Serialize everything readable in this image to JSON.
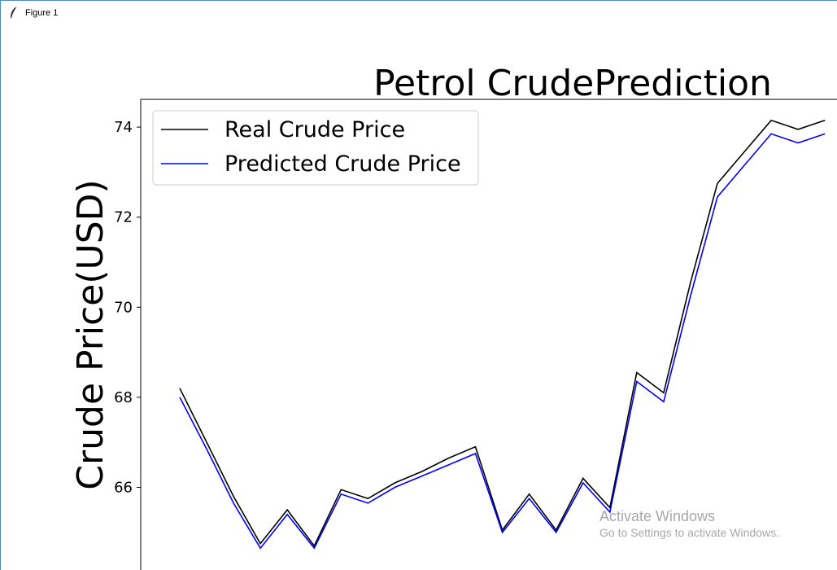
{
  "window": {
    "title": "Figure 1",
    "icon": "feather-icon"
  },
  "chart_data": {
    "type": "line",
    "title": "Petrol CrudePrediction",
    "ylabel": "Crude Price(USD)",
    "xlabel": "",
    "yticks": [
      66,
      68,
      70,
      72,
      74
    ],
    "ylim": [
      64.25,
      74.6
    ],
    "xlim": [
      -1.5,
      24
    ],
    "grid": false,
    "legend_position": "top-left",
    "x": [
      0,
      1,
      2,
      3,
      4,
      5,
      6,
      7,
      8,
      9,
      10,
      11,
      12,
      13,
      14,
      15,
      16,
      17,
      18,
      19,
      20,
      21,
      22,
      23,
      24
    ],
    "series": [
      {
        "name": "Real Crude Price",
        "color": "#000000",
        "values": [
          68.2,
          67.0,
          65.8,
          64.75,
          65.5,
          64.7,
          65.95,
          65.75,
          66.1,
          66.35,
          66.65,
          66.9,
          65.05,
          65.85,
          65.05,
          66.2,
          65.55,
          68.55,
          68.1,
          70.55,
          72.75,
          73.45,
          74.15,
          73.95,
          74.15
        ]
      },
      {
        "name": "Predicted Crude Price",
        "color": "#0000ff",
        "values": [
          68.0,
          66.85,
          65.65,
          64.65,
          65.4,
          64.65,
          65.85,
          65.65,
          66.0,
          66.25,
          66.5,
          66.75,
          65.0,
          65.75,
          65.0,
          66.1,
          65.45,
          68.35,
          67.9,
          70.25,
          72.45,
          73.15,
          73.85,
          73.65,
          73.85
        ]
      }
    ]
  },
  "watermark": {
    "title": "Activate Windows",
    "subtitle": "Go to Settings to activate Windows."
  }
}
